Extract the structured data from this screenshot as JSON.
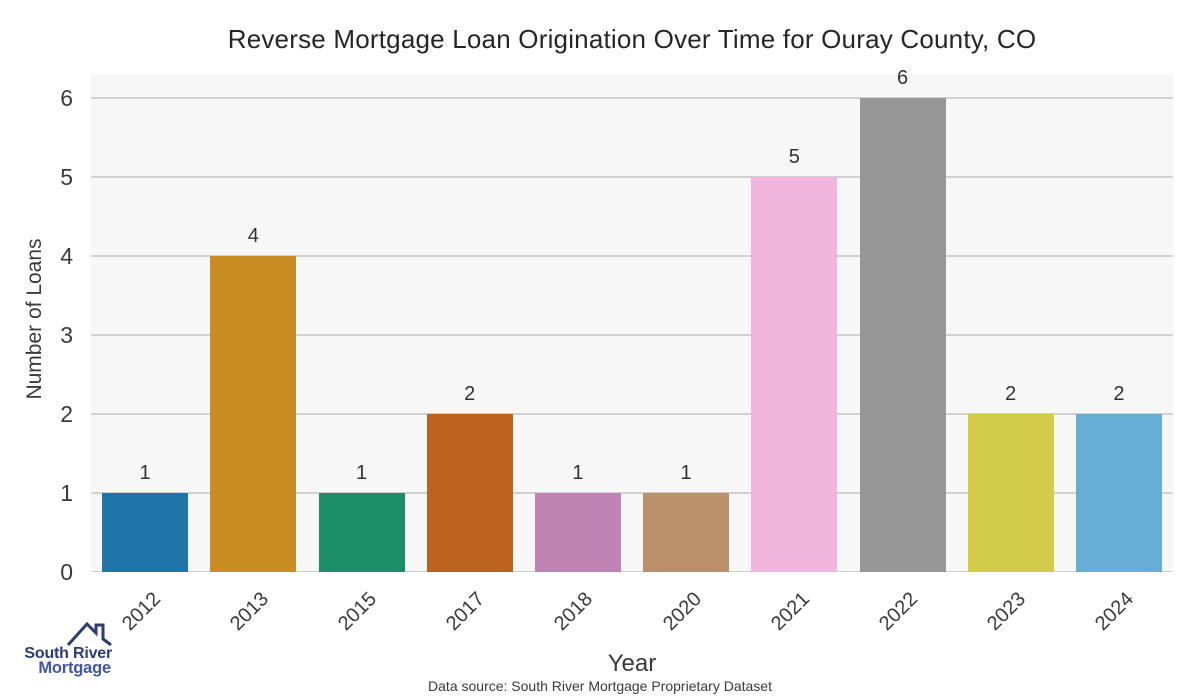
{
  "title": "Reverse Mortgage Loan Origination Over Time for Ouray County, CO",
  "chart_data": {
    "type": "bar",
    "categories": [
      "2012",
      "2013",
      "2015",
      "2017",
      "2018",
      "2020",
      "2021",
      "2022",
      "2023",
      "2024"
    ],
    "values": [
      1,
      4,
      1,
      2,
      1,
      1,
      5,
      6,
      2,
      2
    ],
    "bar_colors": [
      "#1f74a8",
      "#c98c23",
      "#1b8e68",
      "#bb621f",
      "#c083b4",
      "#bb916c",
      "#f2b6de",
      "#969696",
      "#d2cc4a",
      "#66aed6"
    ],
    "title": "Reverse Mortgage Loan Origination Over Time for Ouray County, CO",
    "xlabel": "Year",
    "ylabel": "Number of Loans",
    "ylim": [
      0,
      6
    ],
    "yticks": [
      0,
      1,
      2,
      3,
      4,
      5,
      6
    ],
    "grid": true,
    "legend_position": "none"
  },
  "footer": {
    "source": "Data source: South River Mortgage Proprietary Dataset"
  },
  "logo": {
    "line1": "South River",
    "line2": "Mortgage"
  },
  "colors": {
    "plot_bg": "#f7f7f7",
    "grid": "#d1d1d1",
    "tick_text": "#3a3a3a",
    "title_text": "#262626",
    "bar_label": "#333333",
    "logo_dark": "#2b3c72",
    "logo_light": "#4254a3"
  }
}
